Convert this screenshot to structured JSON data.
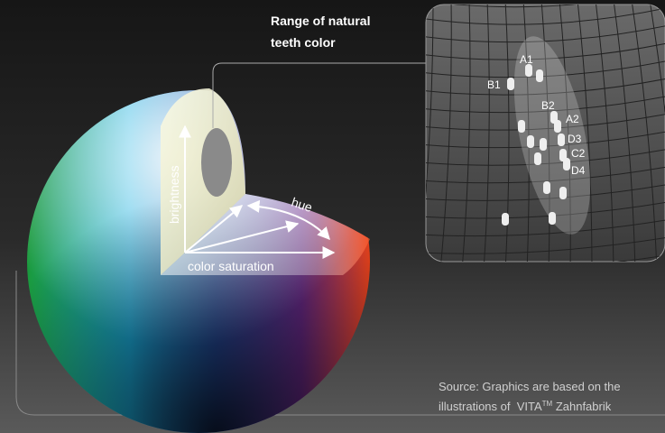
{
  "title_lines": [
    "Range of natural",
    "teeth color"
  ],
  "axes": {
    "brightness": "brightness",
    "hue": "hue",
    "saturation": "color saturation"
  },
  "shades": [
    "A1",
    "B1",
    "B2",
    "A2",
    "D3",
    "C2",
    "D4"
  ],
  "source": {
    "line1": "Source: Graphics are based on the",
    "line2": "illustrations of  VITA",
    "trademark": "TM",
    "line2_end": " Zahnfabrik"
  }
}
